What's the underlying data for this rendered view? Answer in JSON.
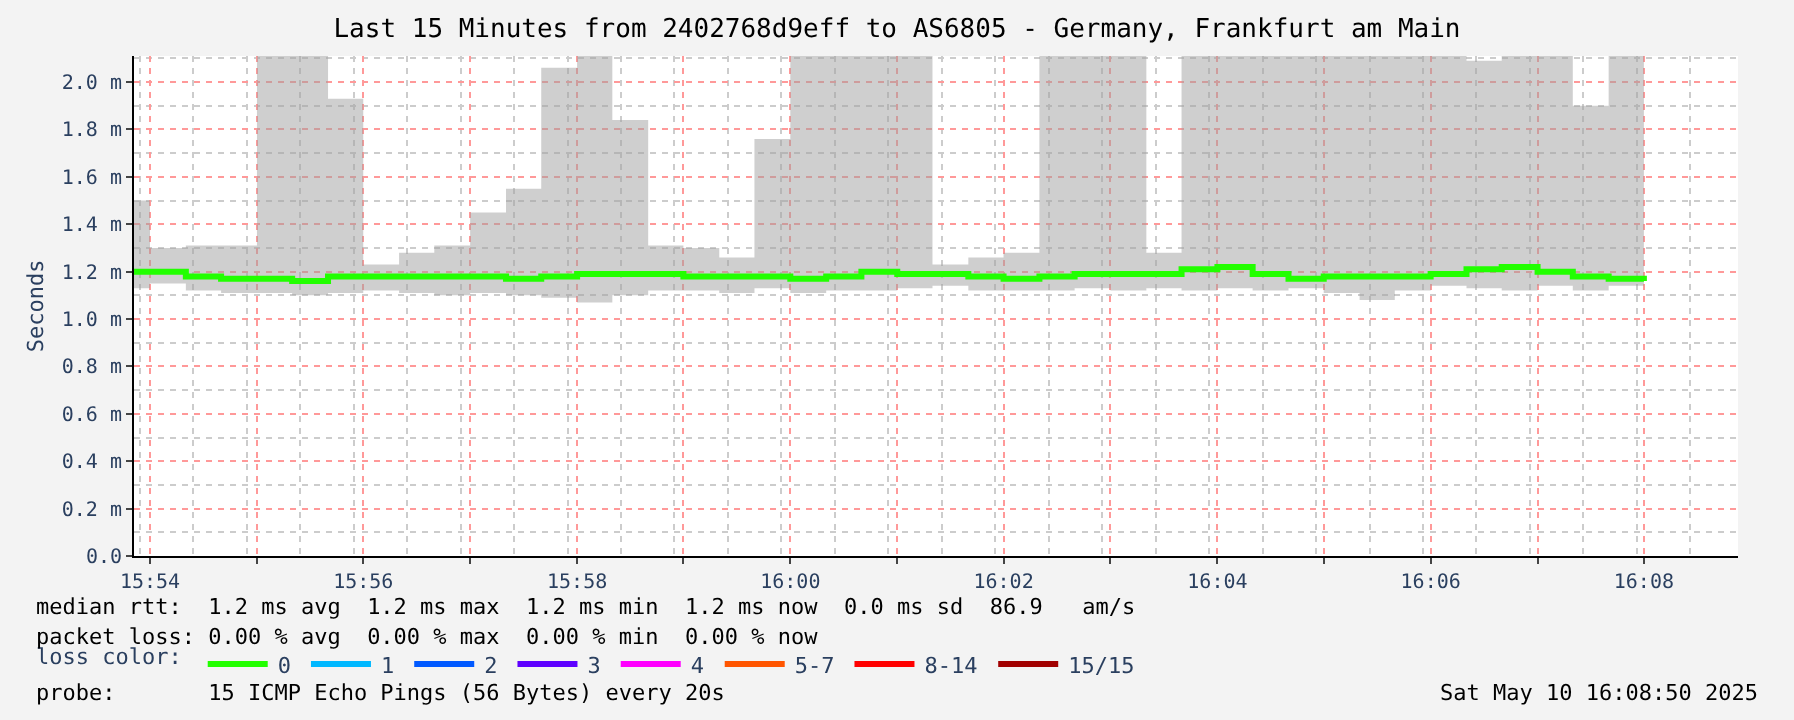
{
  "chart_data": {
    "type": "step",
    "title": "Last 15 Minutes from 2402768d9eff to AS6805 - Germany, Frankfurt am Main",
    "ylabel": "Seconds",
    "legend_title": "loss color:",
    "legend": "bottom",
    "grid": true,
    "x": [
      15.8975,
      15.9,
      15.9056,
      15.9111,
      15.9167,
      15.9222,
      15.9278,
      15.9333,
      15.9389,
      15.9444,
      15.95,
      15.9556,
      15.9611,
      15.9667,
      15.9722,
      15.9778,
      15.9833,
      15.9889,
      15.9944,
      16.0,
      16.0056,
      16.0111,
      16.0167,
      16.0222,
      16.0278,
      16.0333,
      16.0389,
      16.0444,
      16.05,
      16.0556,
      16.0611,
      16.0667,
      16.0722,
      16.0778,
      16.0833,
      16.0889,
      16.0944,
      16.1,
      16.1056,
      16.1111,
      16.1167,
      16.1222,
      16.1278,
      16.1333
    ],
    "series": [
      {
        "name": "0",
        "color": "#22ff00",
        "values": [
          1.2,
          1.2,
          1.18,
          1.17,
          1.17,
          1.16,
          1.18,
          1.18,
          1.18,
          1.18,
          1.18,
          1.17,
          1.18,
          1.19,
          1.19,
          1.19,
          1.18,
          1.18,
          1.18,
          1.17,
          1.18,
          1.2,
          1.19,
          1.19,
          1.18,
          1.17,
          1.18,
          1.19,
          1.19,
          1.19,
          1.21,
          1.22,
          1.19,
          1.17,
          1.18,
          1.18,
          1.18,
          1.19,
          1.21,
          1.22,
          1.2,
          1.18,
          1.17,
          1.16
        ],
        "lower": [
          1.13,
          1.15,
          1.12,
          1.11,
          1.11,
          1.1,
          1.11,
          1.12,
          1.11,
          1.1,
          1.11,
          1.1,
          1.09,
          1.07,
          1.1,
          1.12,
          1.12,
          1.11,
          1.13,
          1.11,
          1.12,
          1.12,
          1.13,
          1.14,
          1.12,
          1.12,
          1.12,
          1.13,
          1.12,
          1.13,
          1.12,
          1.13,
          1.12,
          1.13,
          1.11,
          1.08,
          1.12,
          1.14,
          1.13,
          1.12,
          1.14,
          1.12,
          1.14,
          1.11
        ],
        "upper": [
          1.5,
          1.3,
          1.31,
          1.31,
          2.11,
          2.11,
          1.93,
          1.23,
          1.28,
          1.31,
          1.45,
          1.55,
          2.06,
          2.11,
          1.84,
          1.31,
          1.3,
          1.26,
          1.76,
          2.11,
          2.11,
          2.11,
          2.11,
          1.23,
          1.26,
          1.28,
          2.11,
          2.11,
          2.11,
          1.28,
          2.11,
          2.11,
          2.11,
          2.11,
          2.11,
          2.11,
          2.11,
          2.11,
          2.09,
          2.11,
          2.11,
          1.9,
          2.11,
          2.11
        ]
      },
      {
        "name": "1",
        "color": "#00b8ff",
        "values": [
          null,
          null,
          null,
          null,
          null,
          null,
          null,
          null,
          null,
          null,
          null,
          null,
          null,
          null,
          null,
          null,
          null,
          null,
          null,
          null,
          null,
          null,
          null,
          null,
          null,
          null,
          null,
          null,
          null,
          null,
          null,
          null,
          null,
          null,
          null,
          null,
          null,
          null,
          null,
          null,
          null,
          null,
          null,
          null
        ]
      },
      {
        "name": "2",
        "color": "#0059ff",
        "values": [
          null,
          null,
          null,
          null,
          null,
          null,
          null,
          null,
          null,
          null,
          null,
          null,
          null,
          null,
          null,
          null,
          null,
          null,
          null,
          null,
          null,
          null,
          null,
          null,
          null,
          null,
          null,
          null,
          null,
          null,
          null,
          null,
          null,
          null,
          null,
          null,
          null,
          null,
          null,
          null,
          null,
          null,
          null,
          null
        ]
      },
      {
        "name": "3",
        "color": "#5e00ff",
        "values": [
          null,
          null,
          null,
          null,
          null,
          null,
          null,
          null,
          null,
          null,
          null,
          null,
          null,
          null,
          null,
          null,
          null,
          null,
          null,
          null,
          null,
          null,
          null,
          null,
          null,
          null,
          null,
          null,
          null,
          null,
          null,
          null,
          null,
          null,
          null,
          null,
          null,
          null,
          null,
          null,
          null,
          null,
          null,
          null
        ]
      },
      {
        "name": "4",
        "color": "#ff00ff",
        "values": [
          null,
          null,
          null,
          null,
          null,
          null,
          null,
          null,
          null,
          null,
          null,
          null,
          null,
          null,
          null,
          null,
          null,
          null,
          null,
          null,
          null,
          null,
          null,
          null,
          null,
          null,
          null,
          null,
          null,
          null,
          null,
          null,
          null,
          null,
          null,
          null,
          null,
          null,
          null,
          null,
          null,
          null,
          null,
          null
        ]
      },
      {
        "name": "5-7",
        "color": "#ff5500",
        "values": [
          null,
          null,
          null,
          null,
          null,
          null,
          null,
          null,
          null,
          null,
          null,
          null,
          null,
          null,
          null,
          null,
          null,
          null,
          null,
          null,
          null,
          null,
          null,
          null,
          null,
          null,
          null,
          null,
          null,
          null,
          null,
          null,
          null,
          null,
          null,
          null,
          null,
          null,
          null,
          null,
          null,
          null,
          null,
          null
        ]
      },
      {
        "name": "8-14",
        "color": "#ff0000",
        "values": [
          null,
          null,
          null,
          null,
          null,
          null,
          null,
          null,
          null,
          null,
          null,
          null,
          null,
          null,
          null,
          null,
          null,
          null,
          null,
          null,
          null,
          null,
          null,
          null,
          null,
          null,
          null,
          null,
          null,
          null,
          null,
          null,
          null,
          null,
          null,
          null,
          null,
          null,
          null,
          null,
          null,
          null,
          null,
          null
        ]
      },
      {
        "name": "15/15",
        "color": "#a10000",
        "values": [
          null,
          null,
          null,
          null,
          null,
          null,
          null,
          null,
          null,
          null,
          null,
          null,
          null,
          null,
          null,
          null,
          null,
          null,
          null,
          null,
          null,
          null,
          null,
          null,
          null,
          null,
          null,
          null,
          null,
          null,
          null,
          null,
          null,
          null,
          null,
          null,
          null,
          null,
          null,
          null,
          null,
          null,
          null,
          null
        ]
      }
    ],
    "xlim": [
      15.8975,
      16.148
    ],
    "xticks": [
      {
        "value": 15.9,
        "label": "15:54"
      },
      {
        "value": 15.9167,
        "label": null
      },
      {
        "value": 15.9333,
        "label": "15:56"
      },
      {
        "value": 15.95,
        "label": null
      },
      {
        "value": 15.9667,
        "label": "15:58"
      },
      {
        "value": 15.9833,
        "label": null
      },
      {
        "value": 16.0,
        "label": "16:00"
      },
      {
        "value": 16.0167,
        "label": null
      },
      {
        "value": 16.0333,
        "label": "16:02"
      },
      {
        "value": 16.05,
        "label": null
      },
      {
        "value": 16.0667,
        "label": "16:04"
      },
      {
        "value": 16.0833,
        "label": null
      },
      {
        "value": 16.1,
        "label": "16:06"
      },
      {
        "value": 16.1167,
        "label": null
      },
      {
        "value": 16.1333,
        "label": "16:08"
      }
    ],
    "ylim": [
      0,
      2.11
    ],
    "yticks": [
      {
        "value": 0,
        "label": "0.0"
      },
      {
        "value": 0.2,
        "label": "0.2 m"
      },
      {
        "value": 0.4,
        "label": "0.4 m"
      },
      {
        "value": 0.6,
        "label": "0.6 m"
      },
      {
        "value": 0.8,
        "label": "0.8 m"
      },
      {
        "value": 1.0,
        "label": "1.0 m"
      },
      {
        "value": 1.2,
        "label": "1.2 m"
      },
      {
        "value": 1.4,
        "label": "1.4 m"
      },
      {
        "value": 1.6,
        "label": "1.6 m"
      },
      {
        "value": 1.8,
        "label": "1.8 m"
      },
      {
        "value": 2.0,
        "label": "2.0 m"
      }
    ],
    "annotations": [
      "median rtt:  1.2 ms avg  1.2 ms max  1.2 ms min  1.2 ms now  0.0 ms sd  86.9   am/s",
      "packet loss: 0.00 % avg  0.00 % max  0.00 % min  0.00 % now",
      "probe:       15 ICMP Echo Pings (56 Bytes) every 20s",
      "Sat May 10 16:08:50 2025"
    ]
  }
}
